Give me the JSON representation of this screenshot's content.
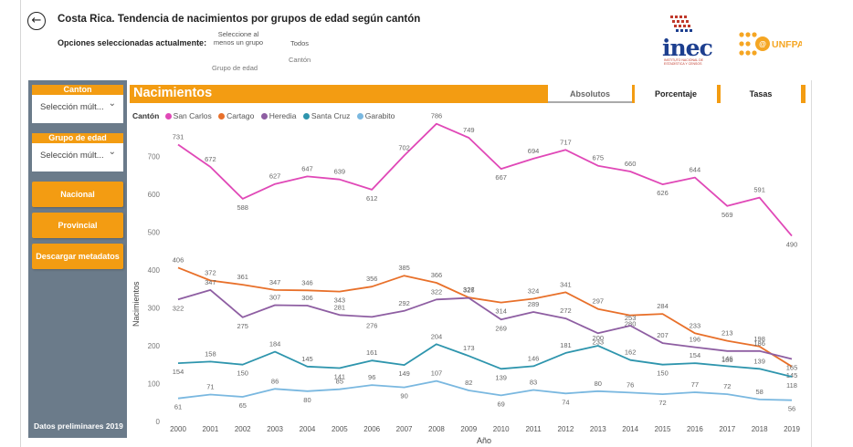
{
  "header": {
    "back_icon": "back-arrow-icon",
    "title": "Costa Rica. Tendencia de nacimientos por grupos de edad según cantón",
    "options_label": "Opciones seleccionadas actualmente:",
    "filter_group_value": "Seleccione al menos un grupo",
    "filter_group_name": "Grupo de edad",
    "filter_canton_value": "Todos",
    "filter_canton_name": "Cantón",
    "logo_inec_text": "inec",
    "logo_inec_sub": "INSTITUTO NACIONAL DE ESTADÍSTICA Y CENSOS",
    "logo_unfpa_text": "UNFPA"
  },
  "sidebar": {
    "canton_header": "Canton",
    "canton_value": "Selección múlt...",
    "grupo_header": "Grupo de edad",
    "grupo_value": "Selección múlt...",
    "buttons": [
      "Nacional",
      "Provincial",
      "Descargar metadatos"
    ],
    "footer": "Datos preliminares 2019"
  },
  "chart_panel": {
    "title": "Nacimientos",
    "tabs": [
      "Absolutos",
      "Porcentaje",
      "Tasas"
    ],
    "legend_title": "Cantón"
  },
  "colors": {
    "orange": "#f39c12",
    "panel": "#6b7b8a"
  },
  "chart_data": {
    "type": "line",
    "xlabel": "Año",
    "ylabel": "Nacimientos",
    "ylim": [
      0,
      790
    ],
    "yticks": [
      0,
      100,
      200,
      300,
      400,
      500,
      600,
      700
    ],
    "x": [
      2000,
      2001,
      2002,
      2003,
      2004,
      2005,
      2006,
      2007,
      2008,
      2009,
      2010,
      2011,
      2012,
      2013,
      2014,
      2015,
      2016,
      2017,
      2018,
      2019
    ],
    "series": [
      {
        "name": "San Carlos",
        "color": "#e048b7",
        "values": [
          731,
          672,
          588,
          627,
          647,
          639,
          612,
          702,
          786,
          749,
          667,
          694,
          717,
          675,
          660,
          626,
          644,
          569,
          591,
          490
        ]
      },
      {
        "name": "Cartago",
        "color": "#e8702a",
        "values": [
          406,
          372,
          361,
          347,
          346,
          343,
          356,
          385,
          366,
          327,
          314,
          324,
          341,
          297,
          280,
          284,
          233,
          213,
          198,
          145
        ]
      },
      {
        "name": "Heredia",
        "color": "#8e5ea2",
        "values": [
          322,
          347,
          275,
          307,
          306,
          281,
          276,
          292,
          322,
          326,
          269,
          289,
          272,
          233,
          253,
          207,
          196,
          186,
          186,
          165
        ]
      },
      {
        "name": "Santa Cruz",
        "color": "#2e95ad",
        "values": [
          154,
          158,
          150,
          184,
          145,
          141,
          161,
          149,
          204,
          173,
          139,
          146,
          181,
          200,
          162,
          150,
          154,
          146,
          139,
          118
        ]
      },
      {
        "name": "Garabito",
        "color": "#7ab8e0",
        "values": [
          61,
          71,
          65,
          86,
          80,
          85,
          96,
          90,
          107,
          82,
          69,
          83,
          74,
          80,
          76,
          72,
          77,
          72,
          58,
          56
        ]
      }
    ]
  }
}
